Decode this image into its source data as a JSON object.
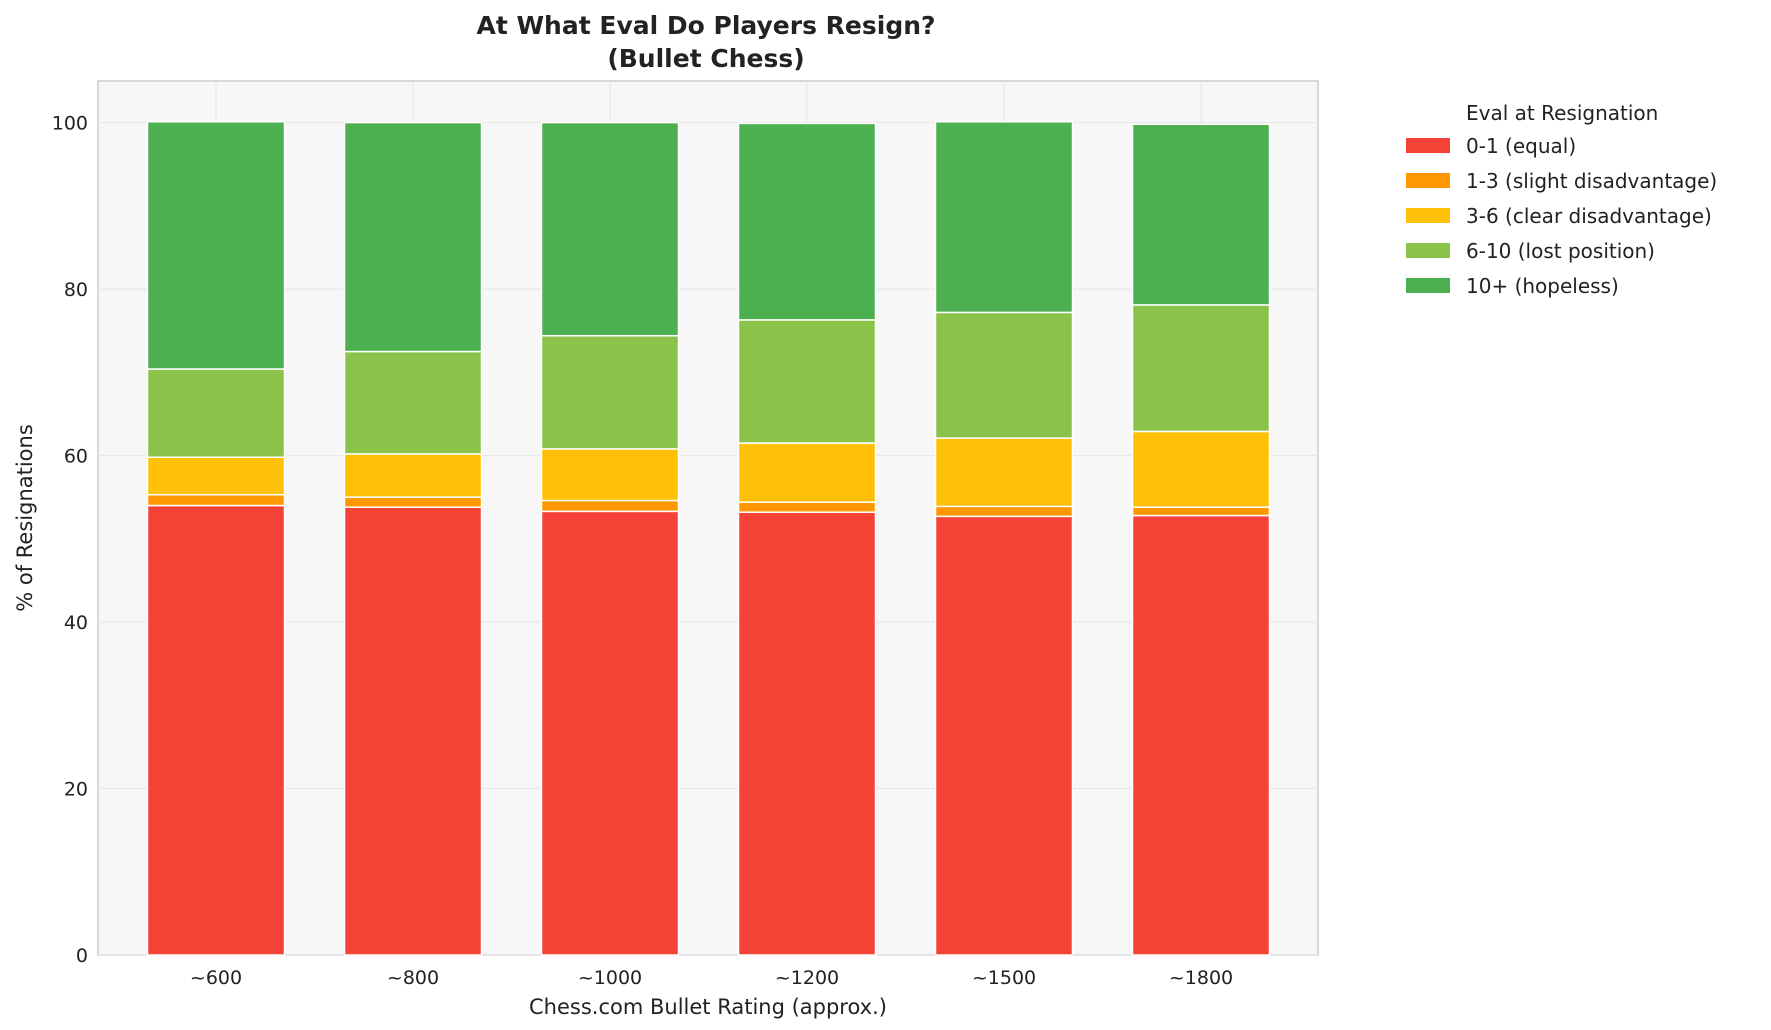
{
  "chart_data": {
    "type": "bar",
    "stacked": true,
    "title": "At What Eval Do Players Resign?",
    "subtitle": "(Bullet Chess)",
    "xlabel": "Chess.com Bullet Rating (approx.)",
    "ylabel": "% of Resignations",
    "ylim": [
      0,
      105
    ],
    "yticks": [
      0,
      20,
      40,
      60,
      80,
      100
    ],
    "grid": true,
    "categories": [
      "~600",
      "~800",
      "~1000",
      "~1200",
      "~1500",
      "~1800"
    ],
    "legend": {
      "title": "Eval at Resignation",
      "placement": "outside-right"
    },
    "series": [
      {
        "name": "0-1 (equal)",
        "color": "#f44336",
        "values": [
          54.0,
          53.8,
          53.3,
          53.2,
          52.7,
          52.8
        ]
      },
      {
        "name": "1-3 (slight disadvantage)",
        "color": "#ff9800",
        "values": [
          1.3,
          1.2,
          1.3,
          1.2,
          1.2,
          1.0
        ]
      },
      {
        "name": "3-6 (clear disadvantage)",
        "color": "#ffc107",
        "values": [
          4.5,
          5.2,
          6.2,
          7.1,
          8.2,
          9.1
        ]
      },
      {
        "name": "6-10 (lost position)",
        "color": "#8bc34a",
        "values": [
          10.6,
          12.3,
          13.6,
          14.8,
          15.1,
          15.2
        ]
      },
      {
        "name": "10+ (hopeless)",
        "color": "#4caf50",
        "values": [
          29.7,
          27.5,
          25.6,
          23.6,
          22.9,
          21.7
        ]
      }
    ]
  }
}
